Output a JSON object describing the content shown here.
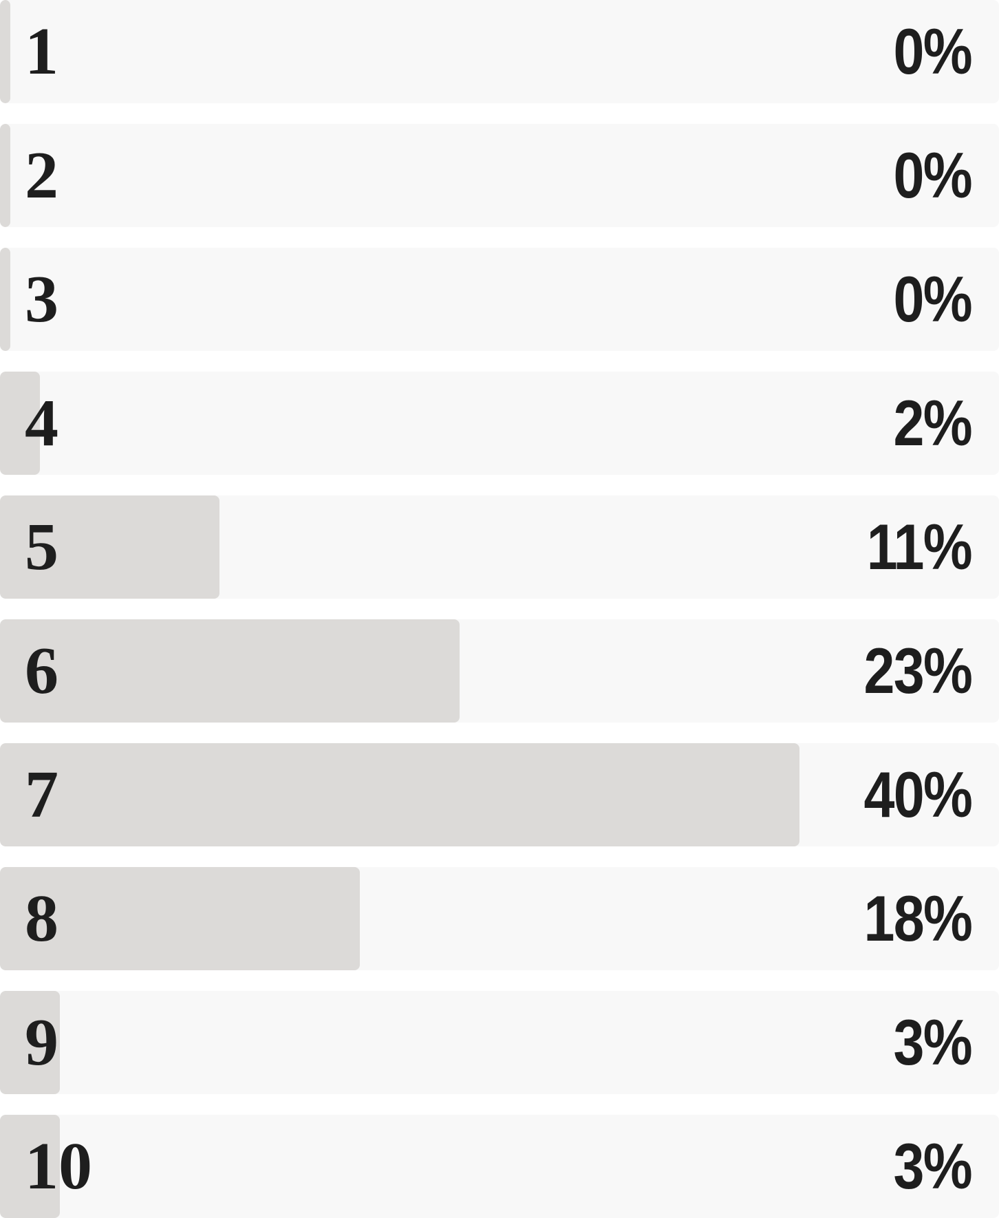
{
  "chart_data": {
    "type": "bar",
    "orientation": "horizontal",
    "categories": [
      "1",
      "2",
      "3",
      "4",
      "5",
      "6",
      "7",
      "8",
      "9",
      "10"
    ],
    "values": [
      0,
      0,
      0,
      2,
      11,
      23,
      40,
      18,
      3,
      3
    ],
    "value_labels": [
      "0%",
      "0%",
      "0%",
      "2%",
      "11%",
      "23%",
      "40%",
      "18%",
      "3%",
      "3%"
    ],
    "unit": "%",
    "title": "",
    "xlabel": "",
    "ylabel": "",
    "grid": false,
    "colors": {
      "track": "#f8f8f8",
      "bar": "#dcdad8",
      "text": "#1e1e1e"
    }
  }
}
